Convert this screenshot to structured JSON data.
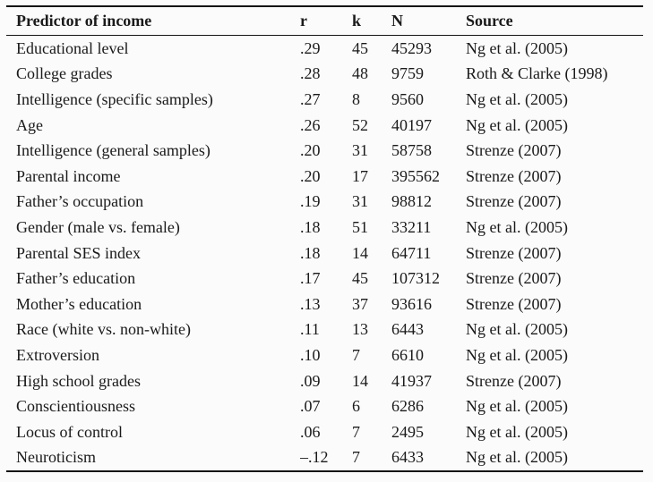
{
  "colors": {
    "background": "#fbfbfb",
    "text": "#1a1a1a",
    "rule": "#141414"
  },
  "table": {
    "columns": [
      "Predictor of income",
      "r",
      "k",
      "N",
      "Source"
    ],
    "column_keys": [
      "predictor",
      "r",
      "k",
      "n",
      "source"
    ],
    "rows": [
      [
        "Educational level",
        ".29",
        "45",
        "45293",
        "Ng et al. (2005)"
      ],
      [
        "College grades",
        ".28",
        "48",
        "9759",
        "Roth & Clarke (1998)"
      ],
      [
        "Intelligence (specific samples)",
        ".27",
        "8",
        "9560",
        "Ng et al. (2005)"
      ],
      [
        "Age",
        ".26",
        "52",
        "40197",
        "Ng et al. (2005)"
      ],
      [
        "Intelligence (general samples)",
        ".20",
        "31",
        "58758",
        "Strenze (2007)"
      ],
      [
        "Parental income",
        ".20",
        "17",
        "395562",
        "Strenze (2007)"
      ],
      [
        "Father’s occupation",
        ".19",
        "31",
        "98812",
        "Strenze (2007)"
      ],
      [
        "Gender (male vs. female)",
        ".18",
        "51",
        "33211",
        "Ng et al. (2005)"
      ],
      [
        "Parental SES index",
        ".18",
        "14",
        "64711",
        "Strenze (2007)"
      ],
      [
        "Father’s education",
        ".17",
        "45",
        "107312",
        "Strenze (2007)"
      ],
      [
        "Mother’s education",
        ".13",
        "37",
        "93616",
        "Strenze (2007)"
      ],
      [
        "Race (white vs. non-white)",
        ".11",
        "13",
        "6443",
        "Ng et al. (2005)"
      ],
      [
        "Extroversion",
        ".10",
        "7",
        "6610",
        "Ng et al. (2005)"
      ],
      [
        "High school grades",
        ".09",
        "14",
        "41937",
        "Strenze (2007)"
      ],
      [
        "Conscientiousness",
        ".07",
        "6",
        "6286",
        "Ng et al. (2005)"
      ],
      [
        "Locus of control",
        ".06",
        "7",
        "2495",
        "Ng et al. (2005)"
      ],
      [
        "Neuroticism",
        "–.12",
        "7",
        "6433",
        "Ng et al. (2005)"
      ]
    ]
  }
}
